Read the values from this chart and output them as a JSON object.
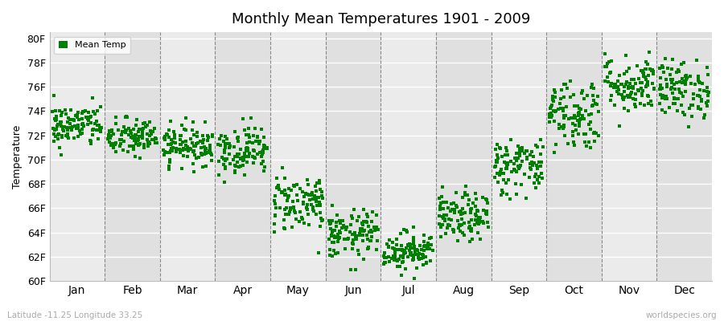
{
  "title": "Monthly Mean Temperatures 1901 - 2009",
  "ylabel": "Temperature",
  "dot_color": "#008000",
  "marker": "s",
  "marker_size": 2.5,
  "ylim": [
    60,
    80.5
  ],
  "yticks": [
    60,
    62,
    64,
    66,
    68,
    70,
    72,
    74,
    76,
    78,
    80
  ],
  "ytick_labels": [
    "60F",
    "62F",
    "64F",
    "66F",
    "68F",
    "70F",
    "72F",
    "74F",
    "76F",
    "78F",
    "80F"
  ],
  "months": [
    "Jan",
    "Feb",
    "Mar",
    "Apr",
    "May",
    "Jun",
    "Jul",
    "Aug",
    "Sep",
    "Oct",
    "Nov",
    "Dec"
  ],
  "month_centers": [
    0.5,
    1.5,
    2.5,
    3.5,
    4.5,
    5.5,
    6.5,
    7.5,
    8.5,
    9.5,
    10.5,
    11.5
  ],
  "legend_label": "Mean Temp",
  "bottom_left_text": "Latitude -11.25 Longitude 33.25",
  "bottom_right_text": "worldspecies.org",
  "background_color": "#ffffff",
  "band_colors": [
    "#ebebeb",
    "#e0e0e0"
  ],
  "n_years": 109,
  "seed": 42,
  "mean_temps_F": [
    72.8,
    71.8,
    71.2,
    70.8,
    66.5,
    63.8,
    62.5,
    65.2,
    69.5,
    73.8,
    76.2,
    75.8
  ],
  "std_temps_F": [
    0.9,
    0.8,
    0.8,
    1.0,
    1.2,
    1.0,
    0.8,
    1.0,
    1.2,
    1.5,
    1.2,
    1.2
  ],
  "title_fontsize": 13,
  "axis_fontsize": 9,
  "xlabel_fontsize": 10
}
